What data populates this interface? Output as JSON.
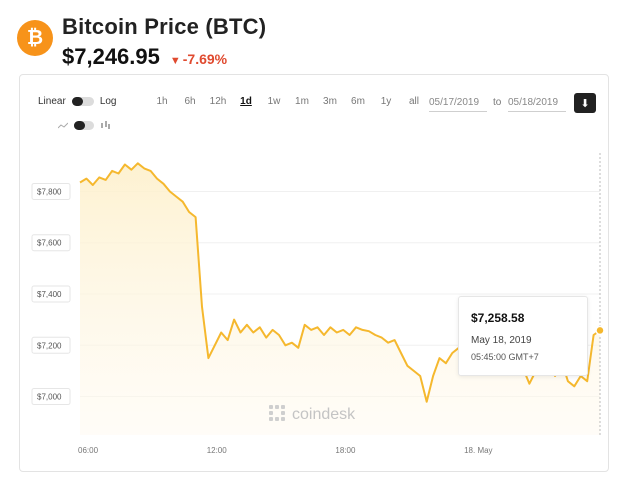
{
  "header": {
    "logo_symbol": "₿",
    "title": "Bitcoin Price (BTC)",
    "price": "$7,246.95",
    "change_arrow": "▼",
    "change": "-7.69%",
    "change_color": "#e04a2f",
    "brand_color": "#f7931a"
  },
  "controls": {
    "scale_left": "Linear",
    "scale_right": "Log",
    "chart_type_left_icon": "line-chart-icon",
    "chart_type_right_icon": "candlestick-icon",
    "ranges": [
      "1h",
      "6h",
      "12h",
      "1d",
      "1w",
      "1m",
      "3m",
      "6m",
      "1y",
      "all"
    ],
    "active_range": "1d",
    "date_from": "05/17/2019",
    "to_label": "to",
    "date_to": "05/18/2019",
    "download_icon": "download-icon"
  },
  "tooltip": {
    "price": "$7,258.58",
    "date": "May 18, 2019",
    "time": "05:45:00 GMT+7"
  },
  "watermark": "coindesk",
  "chart_data": {
    "type": "area",
    "title": "",
    "xlabel": "",
    "ylabel": "",
    "color": "#f5b82e",
    "x_ticks": [
      "06:00",
      "12:00",
      "18:00",
      "18. May"
    ],
    "y_ticks": [
      "$7,000",
      "$7,200",
      "$7,400",
      "$7,600",
      "$7,800"
    ],
    "ylim": [
      6850,
      7950
    ],
    "series": [
      {
        "values": [
          7835,
          7850,
          7825,
          7855,
          7845,
          7880,
          7870,
          7905,
          7885,
          7910,
          7890,
          7880,
          7850,
          7830,
          7800,
          7780,
          7760,
          7720,
          7700,
          7350,
          7150,
          7200,
          7250,
          7220,
          7300,
          7250,
          7280,
          7250,
          7270,
          7230,
          7260,
          7240,
          7200,
          7210,
          7190,
          7280,
          7260,
          7270,
          7240,
          7270,
          7250,
          7260,
          7240,
          7270,
          7260,
          7255,
          7240,
          7230,
          7210,
          7220,
          7170,
          7120,
          7100,
          7080,
          6980,
          7080,
          7150,
          7130,
          7170,
          7190,
          7180,
          7210,
          7250,
          7230,
          7200,
          7190,
          7170,
          7150,
          7160,
          7110,
          7050,
          7100,
          7150,
          7130,
          7080,
          7140,
          7060,
          7040,
          7080,
          7060,
          7240,
          7258
        ]
      }
    ]
  }
}
